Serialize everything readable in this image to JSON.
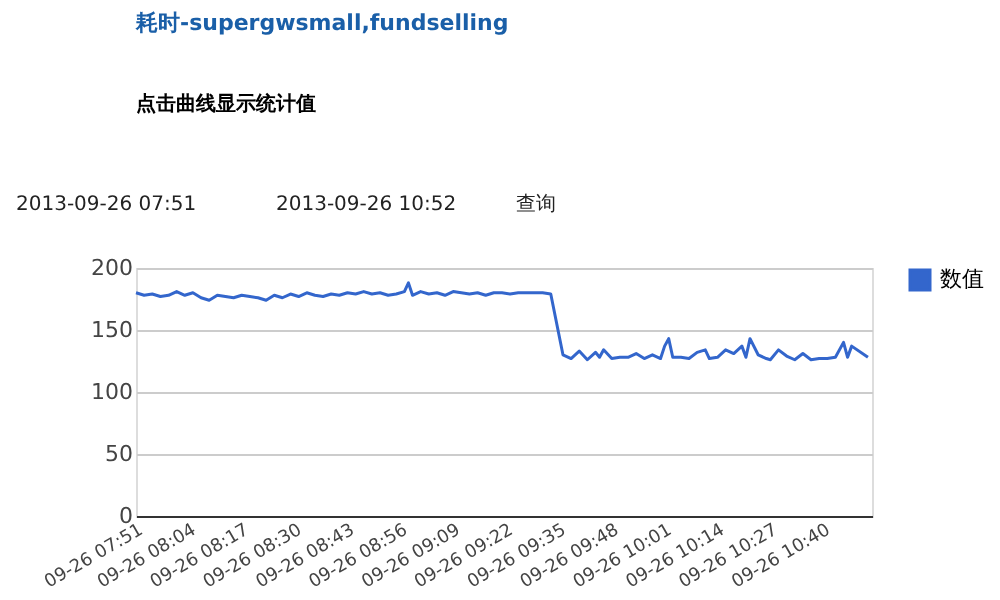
{
  "chart_data": {
    "type": "line",
    "title": "耗时-supergwsmall,fundselling",
    "subtitle": "点击曲线显示统计值",
    "annotations": [
      "2013-09-26 07:51",
      "2013-09-26 10:52",
      "查询"
    ],
    "x": [
      "2013-09-26T07:51",
      "2013-09-26T07:53",
      "2013-09-26T07:55",
      "2013-09-26T07:57",
      "2013-09-26T07:59",
      "2013-09-26T08:01",
      "2013-09-26T08:03",
      "2013-09-26T08:05",
      "2013-09-26T08:07",
      "2013-09-26T08:09",
      "2013-09-26T08:11",
      "2013-09-26T08:13",
      "2013-09-26T08:15",
      "2013-09-26T08:17",
      "2013-09-26T08:19",
      "2013-09-26T08:21",
      "2013-09-26T08:23",
      "2013-09-26T08:25",
      "2013-09-26T08:27",
      "2013-09-26T08:29",
      "2013-09-26T08:31",
      "2013-09-26T08:33",
      "2013-09-26T08:35",
      "2013-09-26T08:37",
      "2013-09-26T08:39",
      "2013-09-26T08:41",
      "2013-09-26T08:43",
      "2013-09-26T08:45",
      "2013-09-26T08:47",
      "2013-09-26T08:49",
      "2013-09-26T08:51",
      "2013-09-26T08:53",
      "2013-09-26T08:55",
      "2013-09-26T08:57",
      "2013-09-26T08:58",
      "2013-09-26T08:59",
      "2013-09-26T09:01",
      "2013-09-26T09:03",
      "2013-09-26T09:05",
      "2013-09-26T09:07",
      "2013-09-26T09:09",
      "2013-09-26T09:11",
      "2013-09-26T09:13",
      "2013-09-26T09:15",
      "2013-09-26T09:17",
      "2013-09-26T09:19",
      "2013-09-26T09:21",
      "2013-09-26T09:23",
      "2013-09-26T09:25",
      "2013-09-26T09:27",
      "2013-09-26T09:29",
      "2013-09-26T09:31",
      "2013-09-26T09:33",
      "2013-09-26T09:36",
      "2013-09-26T09:38",
      "2013-09-26T09:40",
      "2013-09-26T09:42",
      "2013-09-26T09:44",
      "2013-09-26T09:45",
      "2013-09-26T09:46",
      "2013-09-26T09:48",
      "2013-09-26T09:50",
      "2013-09-26T09:52",
      "2013-09-26T09:54",
      "2013-09-26T09:56",
      "2013-09-26T09:58",
      "2013-09-26T10:00",
      "2013-09-26T10:01",
      "2013-09-26T10:02",
      "2013-09-26T10:03",
      "2013-09-26T10:05",
      "2013-09-26T10:07",
      "2013-09-26T10:09",
      "2013-09-26T10:11",
      "2013-09-26T10:12",
      "2013-09-26T10:14",
      "2013-09-26T10:16",
      "2013-09-26T10:18",
      "2013-09-26T10:20",
      "2013-09-26T10:21",
      "2013-09-26T10:22",
      "2013-09-26T10:24",
      "2013-09-26T10:26",
      "2013-09-26T10:27",
      "2013-09-26T10:29",
      "2013-09-26T10:31",
      "2013-09-26T10:33",
      "2013-09-26T10:35",
      "2013-09-26T10:37",
      "2013-09-26T10:39",
      "2013-09-26T10:41",
      "2013-09-26T10:43",
      "2013-09-26T10:45",
      "2013-09-26T10:46",
      "2013-09-26T10:47",
      "2013-09-26T10:51"
    ],
    "series": [
      {
        "name": "数值",
        "color": "#3366cc",
        "values": [
          180,
          178,
          179,
          177,
          178,
          181,
          178,
          180,
          176,
          174,
          178,
          177,
          176,
          178,
          177,
          176,
          174,
          178,
          176,
          179,
          177,
          180,
          178,
          177,
          179,
          178,
          180,
          179,
          181,
          179,
          180,
          178,
          179,
          181,
          188,
          178,
          181,
          179,
          180,
          178,
          181,
          180,
          179,
          180,
          178,
          180,
          180,
          179,
          180,
          180,
          180,
          180,
          179,
          130,
          127,
          133,
          126,
          132,
          128,
          134,
          127,
          128,
          128,
          131,
          127,
          130,
          127,
          137,
          143,
          128,
          128,
          127,
          132,
          134,
          127,
          128,
          134,
          131,
          137,
          128,
          143,
          130,
          127,
          126,
          134,
          129,
          126,
          131,
          126,
          127,
          127,
          128,
          140,
          128,
          137,
          128
        ]
      }
    ],
    "xlim": [
      "2013-09-26T07:51",
      "2013-09-26T10:52"
    ],
    "xticks": [
      {
        "value": "2013-09-26T07:51",
        "label": "09-26 07:51"
      },
      {
        "value": "2013-09-26T08:04",
        "label": "09-26 08:04"
      },
      {
        "value": "2013-09-26T08:17",
        "label": "09-26 08:17"
      },
      {
        "value": "2013-09-26T08:30",
        "label": "09-26 08:30"
      },
      {
        "value": "2013-09-26T08:43",
        "label": "09-26 08:43"
      },
      {
        "value": "2013-09-26T08:56",
        "label": "09-26 08:56"
      },
      {
        "value": "2013-09-26T09:09",
        "label": "09-26 09:09"
      },
      {
        "value": "2013-09-26T09:22",
        "label": "09-26 09:22"
      },
      {
        "value": "2013-09-26T09:35",
        "label": "09-26 09:35"
      },
      {
        "value": "2013-09-26T09:48",
        "label": "09-26 09:48"
      },
      {
        "value": "2013-09-26T10:01",
        "label": "09-26 10:01"
      },
      {
        "value": "2013-09-26T10:14",
        "label": "09-26 10:14"
      },
      {
        "value": "2013-09-26T10:27",
        "label": "09-26 10:27"
      },
      {
        "value": "2013-09-26T10:40",
        "label": "09-26 10:40"
      }
    ],
    "ylim": [
      0,
      200
    ],
    "yticks": [
      0,
      50,
      100,
      150,
      200
    ],
    "grid": "y",
    "legend": "right",
    "marker": "none",
    "line_style": "solid"
  }
}
